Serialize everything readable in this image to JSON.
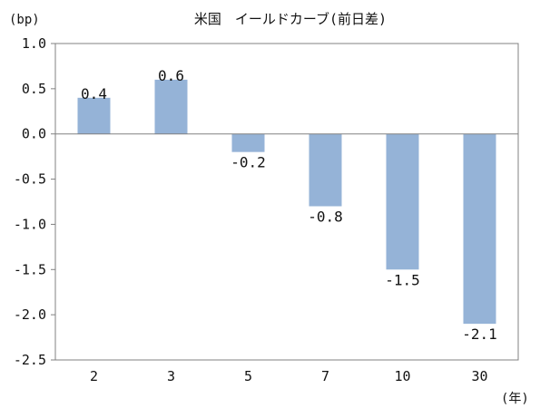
{
  "chart_data": {
    "type": "bar",
    "title": "米国　イールドカーブ(前日差)",
    "ylabel": "(bp)",
    "xlabel": "(年)",
    "categories": [
      "2",
      "3",
      "5",
      "7",
      "10",
      "30"
    ],
    "values": [
      0.4,
      0.6,
      -0.2,
      -0.8,
      -1.5,
      -2.1
    ],
    "data_labels": [
      "0.4",
      "0.6",
      "-0.2",
      "-0.8",
      "-1.5",
      "-2.1"
    ],
    "ylim": [
      -2.5,
      1.0
    ],
    "yticks": [
      "1.0",
      "0.5",
      "0.0",
      "-0.5",
      "-1.0",
      "-1.5",
      "-2.0",
      "-2.5"
    ],
    "grid": false,
    "legend": "none",
    "bar_color": "#95b3d7"
  }
}
